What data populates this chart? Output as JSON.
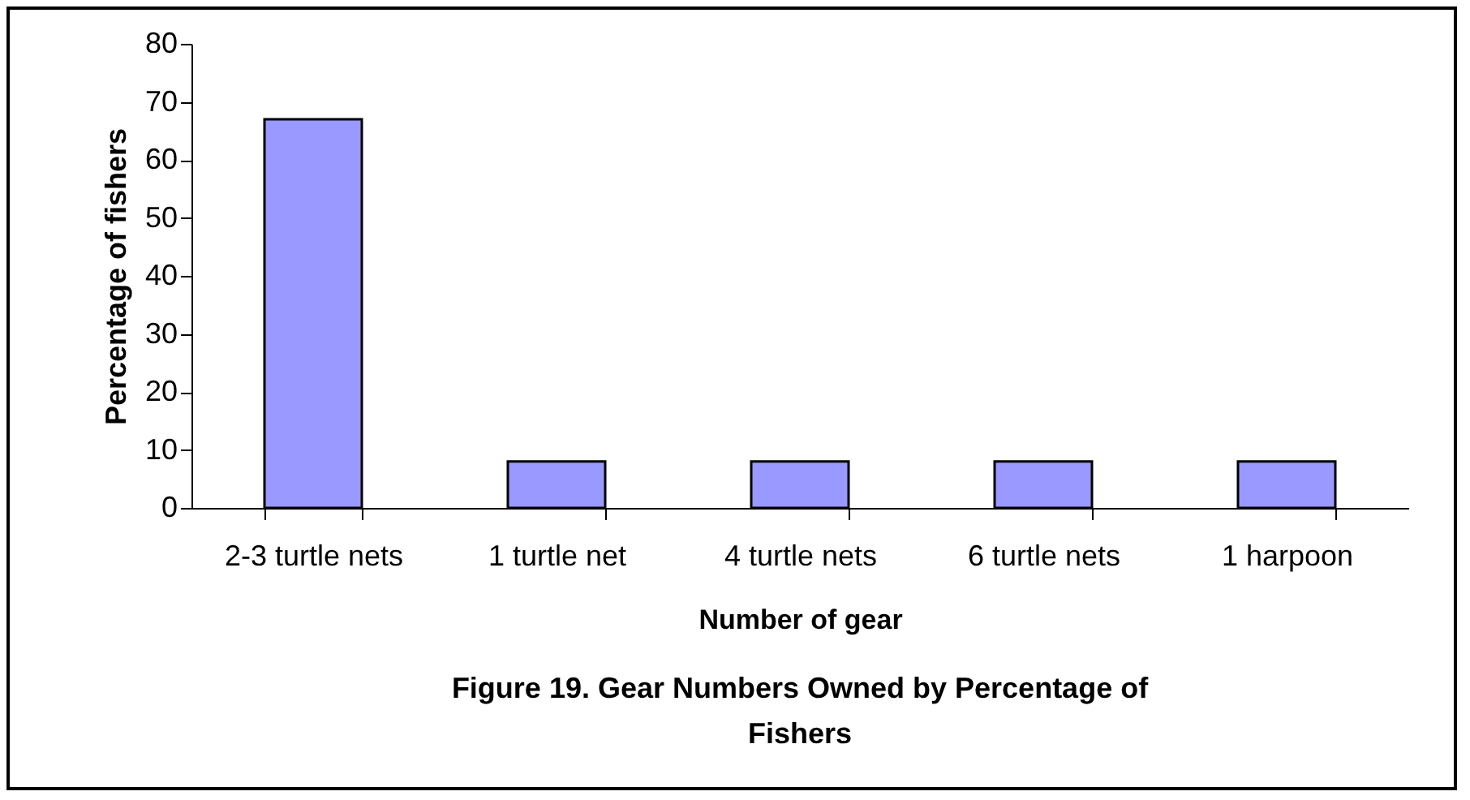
{
  "chart_data": {
    "type": "bar",
    "title": "Figure 19. Gear Numbers Owned by Percentage of Fishers",
    "xlabel": "Number of gear",
    "ylabel": "Percentage of fishers",
    "categories": [
      "2-3 turtle nets",
      "1 turtle net",
      "4 turtle nets",
      "6 turtle nets",
      "1 harpoon"
    ],
    "values": [
      67,
      8,
      8,
      8,
      8
    ],
    "color": "#9999ff",
    "ylim": [
      0,
      80
    ],
    "yticks": [
      0,
      10,
      20,
      30,
      40,
      50,
      60,
      70,
      80
    ],
    "grid": false
  }
}
